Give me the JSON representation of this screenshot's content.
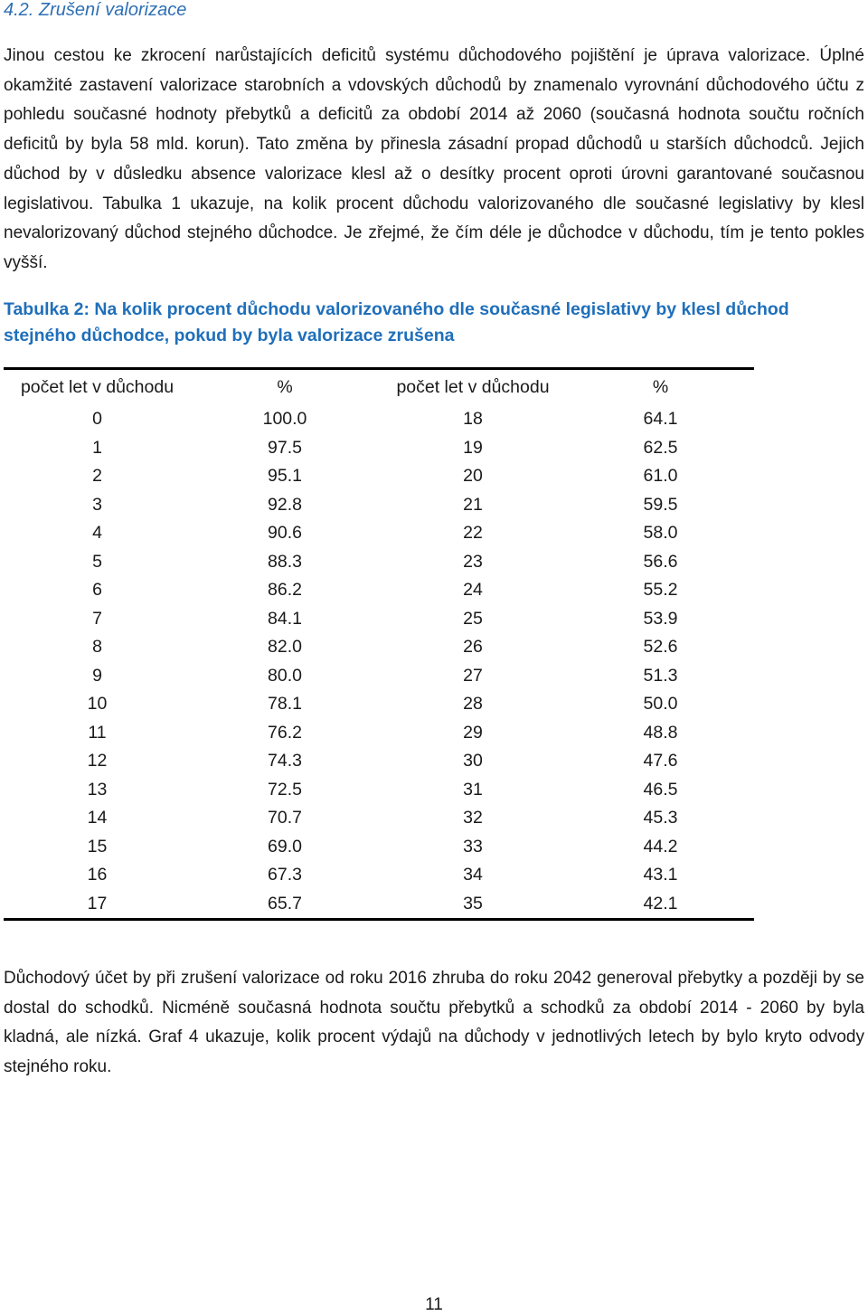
{
  "heading": "4.2. Zrušení valorizace",
  "paragraph1": "Jinou cestou ke zkrocení narůstajících deficitů systému důchodového pojištění je úprava valorizace. Úplné okamžité zastavení valorizace starobních a vdovských důchodů by znamenalo vyrovnání důchodového účtu z pohledu současné hodnoty přebytků a deficitů za období 2014 až 2060 (současná hodnota součtu ročních deficitů by byla 58 mld. korun). Tato změna by přinesla zásadní propad důchodů u starších důchodců. Jejich důchod by v důsledku absence valorizace klesl až o desítky procent oproti úrovni garantované současnou legislativou. Tabulka 1 ukazuje, na kolik procent důchodu valorizovaného dle současné legislativy by klesl nevalorizovaný důchod stejného důchodce. Je zřejmé, že čím déle je důchodce v důchodu, tím je tento pokles vyšší.",
  "caption": "Tabulka 2: Na kolik procent důchodu valorizovaného dle současné legislativy by klesl důchod stejného důchodce, pokud by byla valorizace zrušena",
  "table": {
    "headers": [
      "počet let v důchodu",
      "%",
      "počet let v důchodu",
      "%"
    ],
    "rows": [
      [
        "0",
        "100.0",
        "18",
        "64.1"
      ],
      [
        "1",
        "97.5",
        "19",
        "62.5"
      ],
      [
        "2",
        "95.1",
        "20",
        "61.0"
      ],
      [
        "3",
        "92.8",
        "21",
        "59.5"
      ],
      [
        "4",
        "90.6",
        "22",
        "58.0"
      ],
      [
        "5",
        "88.3",
        "23",
        "56.6"
      ],
      [
        "6",
        "86.2",
        "24",
        "55.2"
      ],
      [
        "7",
        "84.1",
        "25",
        "53.9"
      ],
      [
        "8",
        "82.0",
        "26",
        "52.6"
      ],
      [
        "9",
        "80.0",
        "27",
        "51.3"
      ],
      [
        "10",
        "78.1",
        "28",
        "50.0"
      ],
      [
        "11",
        "76.2",
        "29",
        "48.8"
      ],
      [
        "12",
        "74.3",
        "30",
        "47.6"
      ],
      [
        "13",
        "72.5",
        "31",
        "46.5"
      ],
      [
        "14",
        "70.7",
        "32",
        "45.3"
      ],
      [
        "15",
        "69.0",
        "33",
        "44.2"
      ],
      [
        "16",
        "67.3",
        "34",
        "43.1"
      ],
      [
        "17",
        "65.7",
        "35",
        "42.1"
      ]
    ]
  },
  "paragraph2": "Důchodový účet by při zrušení valorizace od roku 2016 zhruba do roku 2042 generoval přebytky a později by se dostal do schodků. Nicméně současná hodnota součtu přebytků a schodků za období 2014 - 2060 by byla kladná, ale nízká. Graf 4 ukazuje, kolik procent výdajů na důchody v jednotlivých letech by bylo kryto odvody stejného roku.",
  "page_number": "11"
}
